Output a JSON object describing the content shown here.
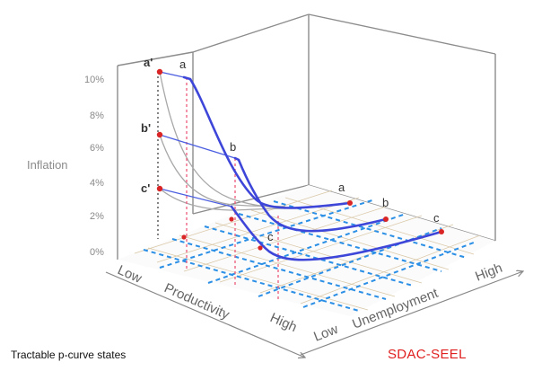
{
  "diagram": {
    "y_axis_title": "Inflation",
    "y_ticks": [
      "10%",
      "8%",
      "6%",
      "4%",
      "2%",
      "0%"
    ],
    "productivity_axis": [
      "Low",
      "Productivity",
      "High"
    ],
    "unemployment_axis": [
      "Low",
      "Unemployment",
      "High"
    ],
    "point_labels": {
      "a_prime": "a'",
      "b_prime": "b'",
      "c_prime": "c'",
      "a_top": "a",
      "b_mid": "b",
      "a_right": "a",
      "b_right": "b",
      "c_right": "c",
      "c_floor": "c"
    },
    "footer_left": "Tractable p-curve states",
    "footer_right": "SDAC-SEEL",
    "colors": {
      "curve_blue": "#3d46d8",
      "grid_blue": "#2b8fe6",
      "marker_red": "#d92525",
      "projection_red": "#ee5a7a",
      "title_red": "#e01f1f"
    }
  }
}
